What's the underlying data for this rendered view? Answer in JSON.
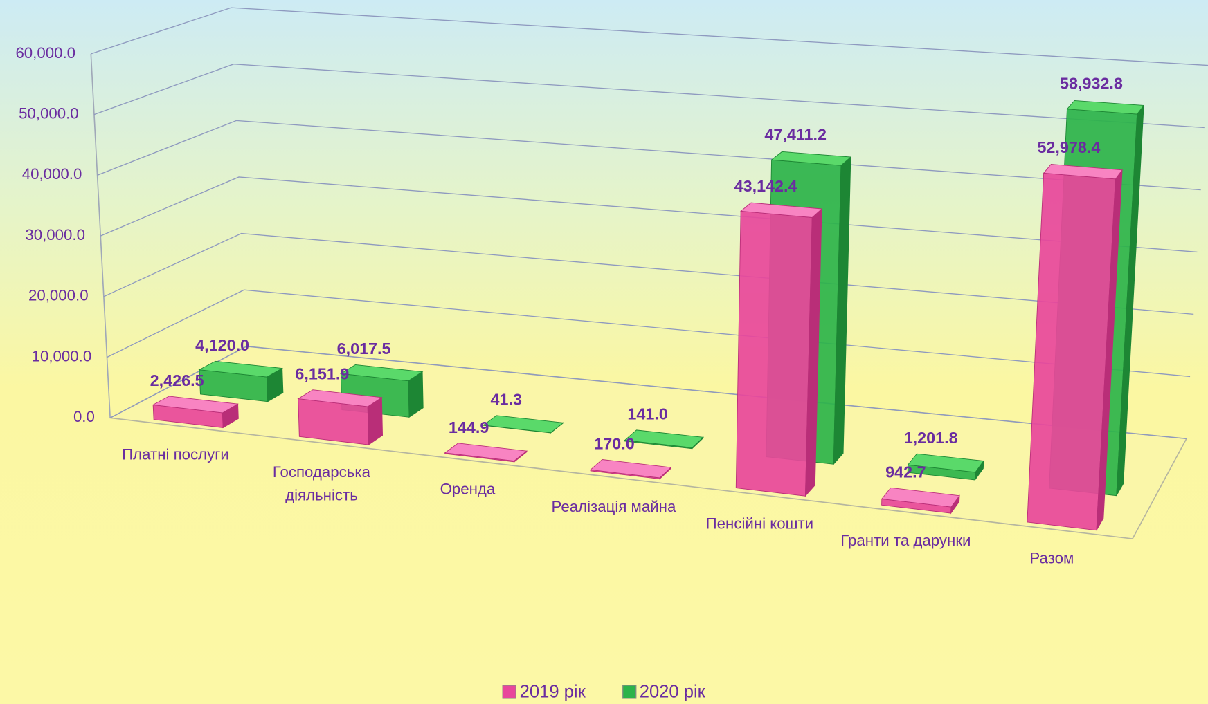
{
  "chart_data": {
    "type": "bar",
    "categories": [
      "Платні послуги",
      "Господарська діяльність",
      "Оренда",
      "Реалізація майна",
      "Пенсійні кошти",
      "Гранти та дарунки",
      "Разом"
    ],
    "series": [
      {
        "name": "2019 рік",
        "color": "#e8479b",
        "values": [
          2426.5,
          6151.9,
          144.9,
          170.0,
          43142.4,
          942.7,
          52978.4
        ],
        "value_labels": [
          "2,426.5",
          "6,151.9",
          "144.9",
          "170.0",
          "43,142.4",
          "942.7",
          "52,978.4"
        ]
      },
      {
        "name": "2020 рік",
        "color": "#2db34a",
        "values": [
          4120.0,
          6017.5,
          41.3,
          141.0,
          47411.2,
          1201.8,
          58932.8
        ],
        "value_labels": [
          "4,120.0",
          "6,017.5",
          "41.3",
          "141.0",
          "47,411.2",
          "1,201.8",
          "58,932.8"
        ]
      }
    ],
    "ylim": [
      0,
      60000
    ],
    "yticks": [
      {
        "value": 0,
        "label": "0.0"
      },
      {
        "value": 10000,
        "label": "10,000.0"
      },
      {
        "value": 20000,
        "label": "20,000.0"
      },
      {
        "value": 30000,
        "label": "30,000.0"
      },
      {
        "value": 40000,
        "label": "40,000.0"
      },
      {
        "value": 50000,
        "label": "50,000.0"
      },
      {
        "value": 60000,
        "label": "60,000.0"
      }
    ],
    "grid": true,
    "legend": "bottom"
  }
}
